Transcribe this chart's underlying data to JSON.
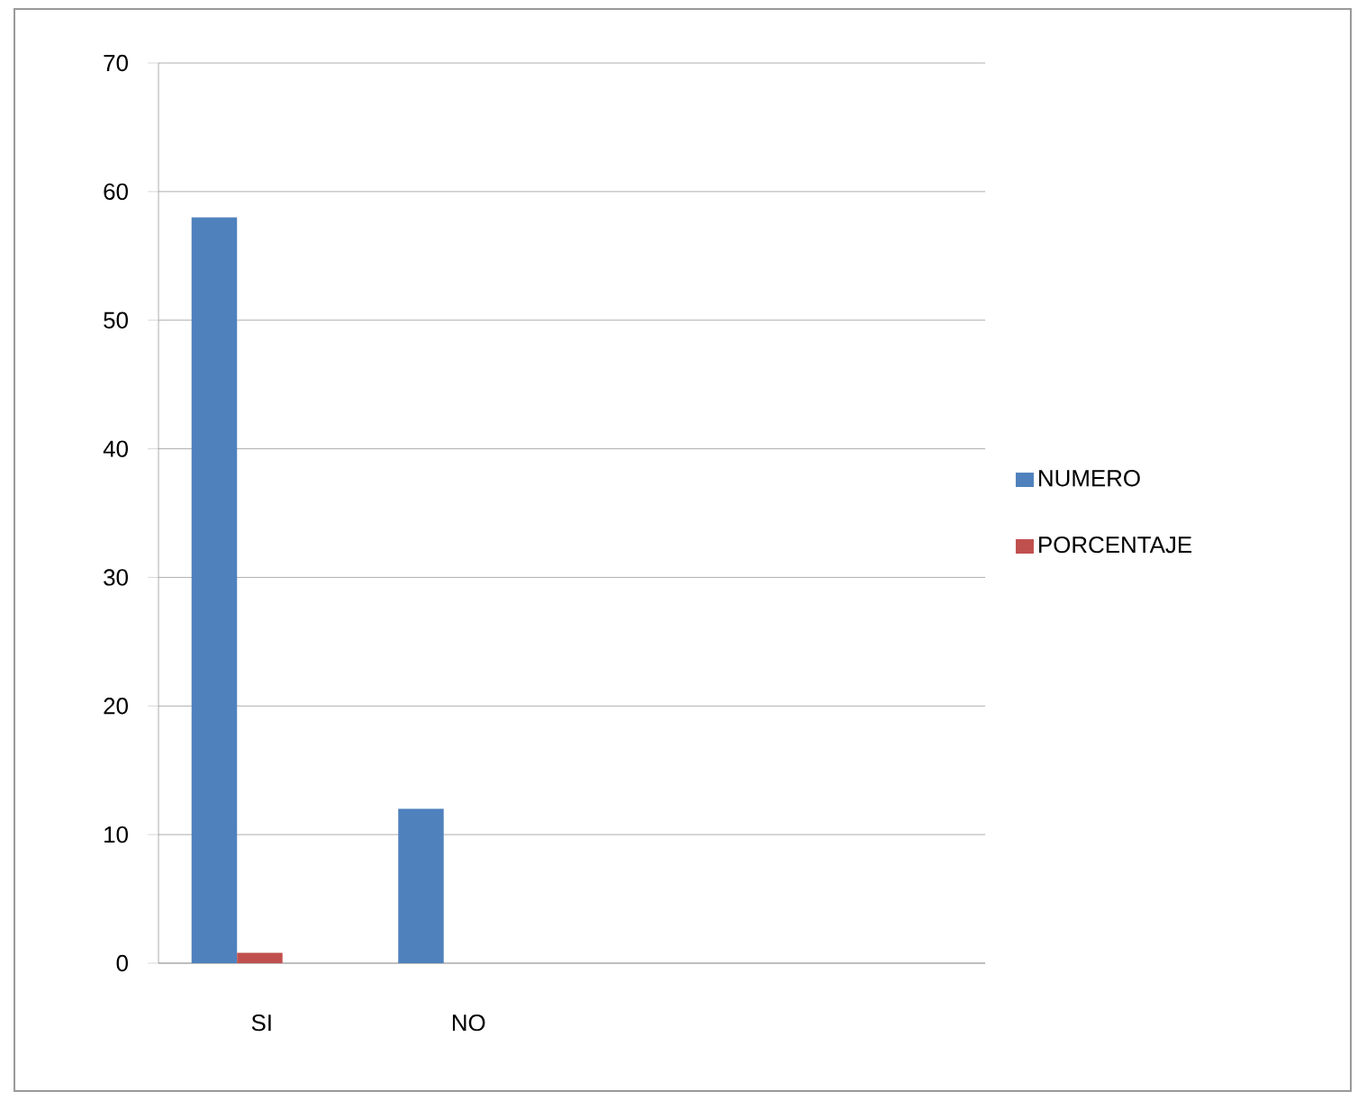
{
  "chart_data": {
    "type": "bar",
    "categories": [
      "SI",
      "NO",
      null,
      null
    ],
    "series": [
      {
        "name": "NUMERO",
        "color": "#4f81bd",
        "values": [
          58,
          12,
          null,
          null
        ]
      },
      {
        "name": "PORCENTAJE",
        "color": "#c0504d",
        "values": [
          0.8,
          null,
          null,
          null
        ]
      }
    ],
    "ylim": [
      0,
      70
    ],
    "yticks": [
      0,
      10,
      20,
      30,
      40,
      50,
      60,
      70
    ],
    "grid": "y",
    "legend": "right"
  }
}
